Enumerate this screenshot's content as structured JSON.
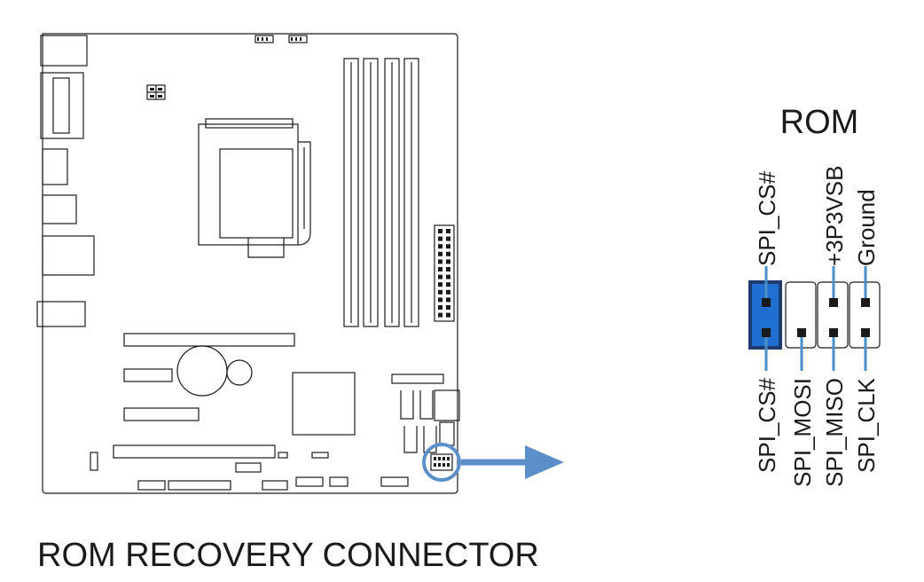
{
  "caption": "ROM RECOVERY CONNECTOR",
  "header": {
    "title": "ROM",
    "top_pins": [
      "SPI_CS#",
      "",
      "+3P3VSB",
      "Ground"
    ],
    "bottom_pins": [
      "SPI_CS#",
      "SPI_MOSI",
      "SPI_MISO",
      "SPI_CLK"
    ]
  },
  "colors": {
    "outline": "#1a1a1a",
    "accent": "#5b8fc9",
    "pin1_fill": "#1f6fd1",
    "pin1_border": "#1d3b6e",
    "pin_lead": "#4a90c8"
  },
  "icons": {
    "arrow": "right-arrow-icon",
    "highlight": "circle-highlight-icon"
  }
}
